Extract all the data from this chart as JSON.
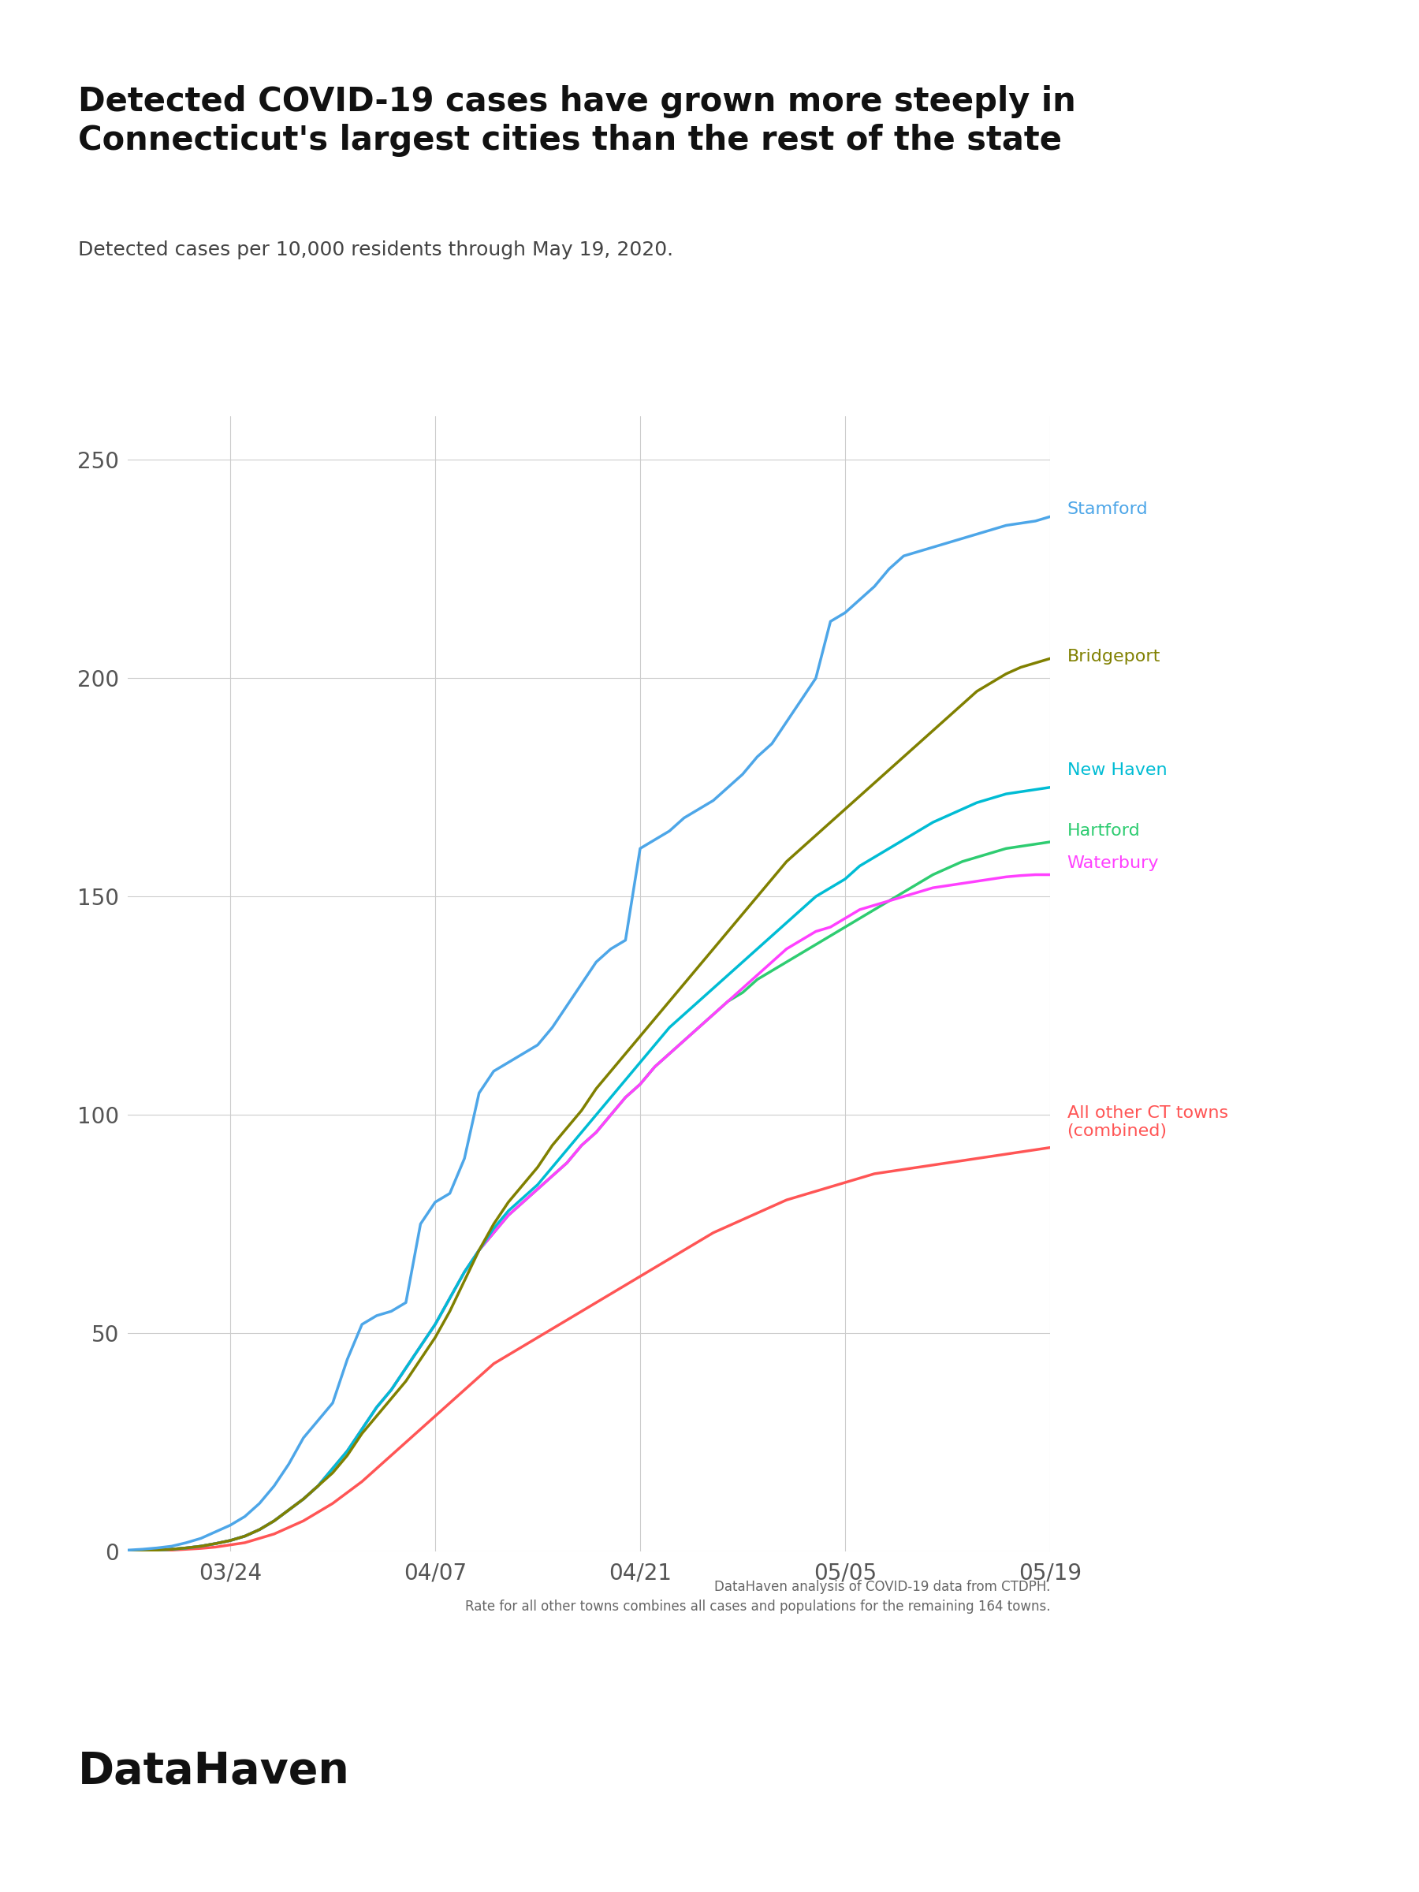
{
  "title": "Detected COVID-19 cases have grown more steeply in\nConnecticut's largest cities than the rest of the state",
  "subtitle": "Detected cases per 10,000 residents through May 19, 2020.",
  "footnote1": "DataHaven analysis of COVID-19 data from CTDPH.",
  "footnote2": "Rate for all other towns combines all cases and populations for the remaining 164 towns.",
  "ylim": [
    0,
    260
  ],
  "yticks": [
    0,
    50,
    100,
    150,
    200,
    250
  ],
  "background_color": "#ffffff",
  "dates": [
    "2020-03-17",
    "2020-03-18",
    "2020-03-19",
    "2020-03-20",
    "2020-03-21",
    "2020-03-22",
    "2020-03-23",
    "2020-03-24",
    "2020-03-25",
    "2020-03-26",
    "2020-03-27",
    "2020-03-28",
    "2020-03-29",
    "2020-03-30",
    "2020-03-31",
    "2020-04-01",
    "2020-04-02",
    "2020-04-03",
    "2020-04-04",
    "2020-04-05",
    "2020-04-06",
    "2020-04-07",
    "2020-04-08",
    "2020-04-09",
    "2020-04-10",
    "2020-04-11",
    "2020-04-12",
    "2020-04-13",
    "2020-04-14",
    "2020-04-15",
    "2020-04-16",
    "2020-04-17",
    "2020-04-18",
    "2020-04-19",
    "2020-04-20",
    "2020-04-21",
    "2020-04-22",
    "2020-04-23",
    "2020-04-24",
    "2020-04-25",
    "2020-04-26",
    "2020-04-27",
    "2020-04-28",
    "2020-04-29",
    "2020-04-30",
    "2020-05-01",
    "2020-05-02",
    "2020-05-03",
    "2020-05-04",
    "2020-05-05",
    "2020-05-06",
    "2020-05-07",
    "2020-05-08",
    "2020-05-09",
    "2020-05-10",
    "2020-05-11",
    "2020-05-12",
    "2020-05-13",
    "2020-05-14",
    "2020-05-15",
    "2020-05-16",
    "2020-05-17",
    "2020-05-18",
    "2020-05-19"
  ],
  "values": {
    "Stamford": [
      0.3,
      0.5,
      0.8,
      1.2,
      2.0,
      3.0,
      4.5,
      6.0,
      8.0,
      11.0,
      15.0,
      20.0,
      26.0,
      30.0,
      34.0,
      44.0,
      52.0,
      54.0,
      55.0,
      57.0,
      75.0,
      80.0,
      82.0,
      90.0,
      105.0,
      110.0,
      112.0,
      114.0,
      116.0,
      120.0,
      125.0,
      130.0,
      135.0,
      138.0,
      140.0,
      161.0,
      163.0,
      165.0,
      168.0,
      170.0,
      172.0,
      175.0,
      178.0,
      182.0,
      185.0,
      190.0,
      195.0,
      200.0,
      213.0,
      215.0,
      218.0,
      221.0,
      225.0,
      228.0,
      229.0,
      230.0,
      231.0,
      232.0,
      233.0,
      234.0,
      235.0,
      235.5,
      236.0,
      237.0
    ],
    "Bridgeport": [
      0.1,
      0.2,
      0.3,
      0.5,
      0.8,
      1.2,
      1.8,
      2.5,
      3.5,
      5.0,
      7.0,
      9.5,
      12.0,
      15.0,
      18.0,
      22.0,
      27.0,
      31.0,
      35.0,
      39.0,
      44.0,
      49.0,
      55.0,
      62.0,
      69.0,
      75.0,
      80.0,
      84.0,
      88.0,
      93.0,
      97.0,
      101.0,
      106.0,
      110.0,
      114.0,
      118.0,
      122.0,
      126.0,
      130.0,
      134.0,
      138.0,
      142.0,
      146.0,
      150.0,
      154.0,
      158.0,
      161.0,
      164.0,
      167.0,
      170.0,
      173.0,
      176.0,
      179.0,
      182.0,
      185.0,
      188.0,
      191.0,
      194.0,
      197.0,
      199.0,
      201.0,
      202.5,
      203.5,
      204.5
    ],
    "New Haven": [
      0.1,
      0.2,
      0.3,
      0.5,
      0.8,
      1.2,
      1.8,
      2.5,
      3.5,
      5.0,
      7.0,
      9.5,
      12.0,
      15.0,
      19.0,
      23.0,
      28.0,
      33.0,
      37.0,
      42.0,
      47.0,
      52.0,
      58.0,
      64.0,
      69.0,
      74.0,
      78.0,
      81.0,
      84.0,
      88.0,
      92.0,
      96.0,
      100.0,
      104.0,
      108.0,
      112.0,
      116.0,
      120.0,
      123.0,
      126.0,
      129.0,
      132.0,
      135.0,
      138.0,
      141.0,
      144.0,
      147.0,
      150.0,
      152.0,
      154.0,
      157.0,
      159.0,
      161.0,
      163.0,
      165.0,
      167.0,
      168.5,
      170.0,
      171.5,
      172.5,
      173.5,
      174.0,
      174.5,
      175.0
    ],
    "Hartford": [
      0.1,
      0.2,
      0.3,
      0.5,
      0.8,
      1.2,
      1.8,
      2.5,
      3.5,
      5.0,
      7.0,
      9.5,
      12.0,
      15.0,
      19.0,
      23.0,
      28.0,
      33.0,
      37.0,
      42.0,
      47.0,
      52.0,
      58.0,
      64.0,
      69.0,
      73.0,
      77.0,
      80.0,
      83.0,
      86.0,
      89.0,
      93.0,
      96.0,
      100.0,
      104.0,
      107.0,
      111.0,
      114.0,
      117.0,
      120.0,
      123.0,
      126.0,
      128.0,
      131.0,
      133.0,
      135.0,
      137.0,
      139.0,
      141.0,
      143.0,
      145.0,
      147.0,
      149.0,
      151.0,
      153.0,
      155.0,
      156.5,
      158.0,
      159.0,
      160.0,
      161.0,
      161.5,
      162.0,
      162.5
    ],
    "Waterbury": [
      0.1,
      0.2,
      0.3,
      0.5,
      0.8,
      1.2,
      1.8,
      2.5,
      3.5,
      5.0,
      7.0,
      9.5,
      12.0,
      15.0,
      19.0,
      23.0,
      28.0,
      33.0,
      37.0,
      42.0,
      47.0,
      52.0,
      58.0,
      64.0,
      69.0,
      73.0,
      77.0,
      80.0,
      83.0,
      86.0,
      89.0,
      93.0,
      96.0,
      100.0,
      104.0,
      107.0,
      111.0,
      114.0,
      117.0,
      120.0,
      123.0,
      126.0,
      129.0,
      132.0,
      135.0,
      138.0,
      140.0,
      142.0,
      143.0,
      145.0,
      147.0,
      148.0,
      149.0,
      150.0,
      151.0,
      152.0,
      152.5,
      153.0,
      153.5,
      154.0,
      154.5,
      154.8,
      155.0,
      155.0
    ],
    "All other CT towns": [
      0.1,
      0.1,
      0.2,
      0.3,
      0.5,
      0.7,
      1.0,
      1.5,
      2.0,
      3.0,
      4.0,
      5.5,
      7.0,
      9.0,
      11.0,
      13.5,
      16.0,
      19.0,
      22.0,
      25.0,
      28.0,
      31.0,
      34.0,
      37.0,
      40.0,
      43.0,
      45.0,
      47.0,
      49.0,
      51.0,
      53.0,
      55.0,
      57.0,
      59.0,
      61.0,
      63.0,
      65.0,
      67.0,
      69.0,
      71.0,
      73.0,
      74.5,
      76.0,
      77.5,
      79.0,
      80.5,
      81.5,
      82.5,
      83.5,
      84.5,
      85.5,
      86.5,
      87.0,
      87.5,
      88.0,
      88.5,
      89.0,
      89.5,
      90.0,
      90.5,
      91.0,
      91.5,
      92.0,
      92.5
    ]
  },
  "series_order": [
    "All other CT towns",
    "Hartford",
    "Waterbury",
    "New Haven",
    "Bridgeport",
    "Stamford"
  ],
  "colors": {
    "Stamford": "#4DA6E8",
    "Bridgeport": "#808000",
    "New Haven": "#00BCD4",
    "Hartford": "#2ECC71",
    "Waterbury": "#FF40FF",
    "All other CT towns": "#FF5555"
  },
  "end_labels": {
    "Stamford": "Stamford",
    "Bridgeport": "Bridgeport",
    "New Haven": "New Haven",
    "Hartford": "Hartford",
    "Waterbury": "Waterbury",
    "All other CT towns": "All other CT towns\n(combined)"
  },
  "label_colors": {
    "Stamford": "#4DA6E8",
    "Bridgeport": "#808000",
    "New Haven": "#00BCD4",
    "Hartford": "#2ECC71",
    "Waterbury": "#FF40FF",
    "All other CT towns": "#FF5555"
  },
  "label_y_frac": {
    "Stamford": 0.918,
    "Bridgeport": 0.788,
    "New Haven": 0.688,
    "Hartford": 0.635,
    "Waterbury": 0.606,
    "All other CT towns": 0.378
  },
  "xtick_dates": [
    "2020-03-24",
    "2020-04-07",
    "2020-04-21",
    "2020-05-05",
    "2020-05-19"
  ],
  "xtick_labels": [
    "03/24",
    "04/07",
    "04/21",
    "05/05",
    "05/19"
  ],
  "xmin": "2020-03-17",
  "xmax": "2020-05-19"
}
